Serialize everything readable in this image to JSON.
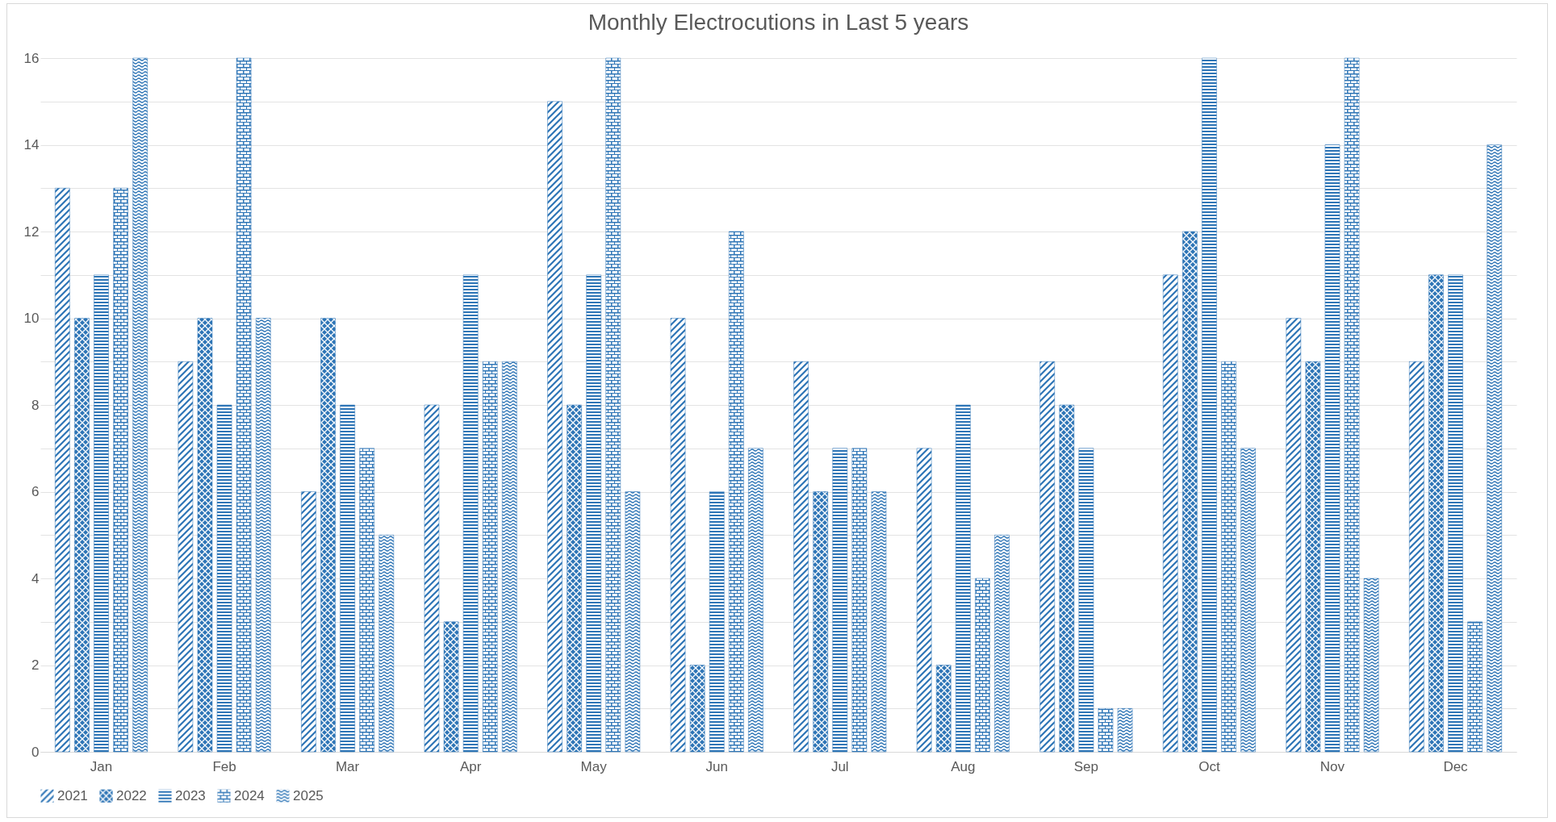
{
  "chart_data": {
    "type": "bar",
    "title": "Monthly Electrocutions in Last 5 years",
    "categories": [
      "Jan",
      "Feb",
      "Mar",
      "Apr",
      "May",
      "Jun",
      "Jul",
      "Aug",
      "Sep",
      "Oct",
      "Nov",
      "Dec"
    ],
    "series": [
      {
        "name": "2021",
        "color": "#2e75b6",
        "values": [
          13,
          9,
          6,
          8,
          15,
          10,
          9,
          7,
          9,
          11,
          10,
          9
        ]
      },
      {
        "name": "2022",
        "color": "#2e75b6",
        "values": [
          10,
          10,
          10,
          3,
          8,
          2,
          6,
          2,
          8,
          12,
          9,
          11
        ]
      },
      {
        "name": "2023",
        "color": "#2e75b6",
        "values": [
          11,
          8,
          8,
          11,
          11,
          6,
          7,
          8,
          7,
          16,
          14,
          11
        ]
      },
      {
        "name": "2024",
        "color": "#2e75b6",
        "values": [
          13,
          16,
          7,
          9,
          16,
          12,
          7,
          4,
          1,
          9,
          16,
          3
        ]
      },
      {
        "name": "2025",
        "color": "#2e75b6",
        "values": [
          16,
          10,
          5,
          9,
          6,
          7,
          6,
          5,
          1,
          7,
          4,
          14
        ]
      }
    ],
    "ylim": [
      0,
      16
    ],
    "yticks": [
      0,
      {
        "value": 1,
        "label": null
      },
      2,
      {
        "value": 3,
        "label": null
      },
      4,
      {
        "value": 5,
        "label": null
      },
      6,
      {
        "value": 7,
        "label": null
      },
      8,
      {
        "value": 9,
        "label": null
      },
      10,
      {
        "value": 11,
        "label": null
      },
      12,
      {
        "value": 13,
        "label": null
      },
      14,
      {
        "value": 15,
        "label": null
      },
      16
    ],
    "grid": true,
    "legend": "bottom"
  }
}
